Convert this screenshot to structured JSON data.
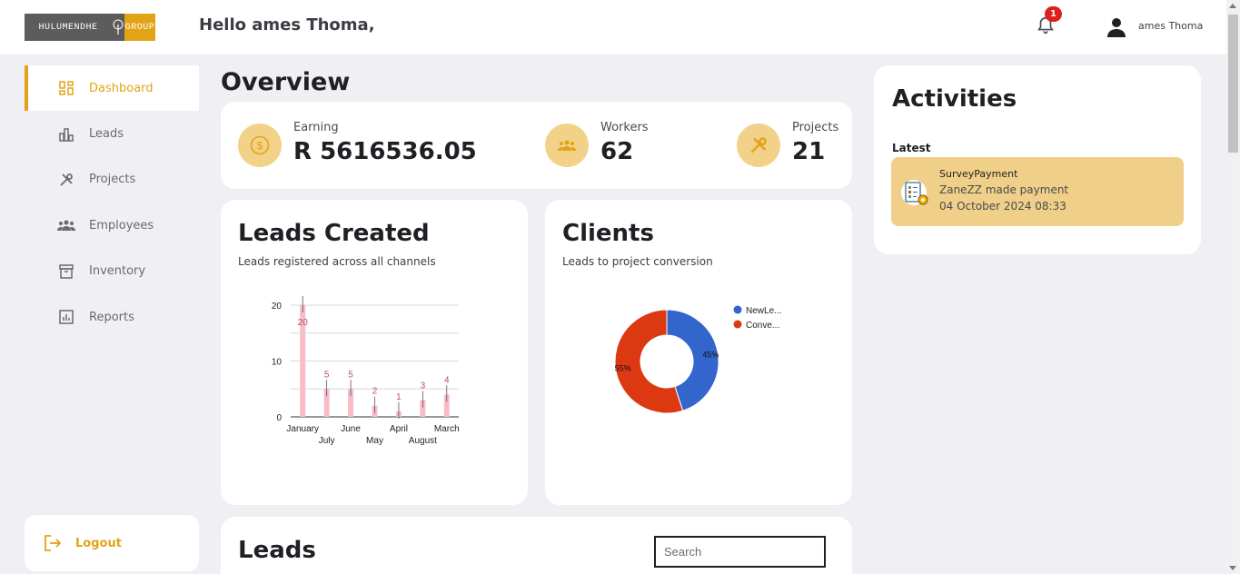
{
  "header": {
    "logo_left": "HULUMENDHE",
    "logo_right": "GROUP",
    "greeting": "Hello ames Thoma,",
    "notification_count": "1",
    "user_name": "ames Thoma"
  },
  "sidebar": {
    "items": [
      {
        "label": "Dashboard",
        "icon": "dashboard-icon",
        "active": true
      },
      {
        "label": "Leads",
        "icon": "bar-chart-icon",
        "active": false
      },
      {
        "label": "Projects",
        "icon": "tools-icon",
        "active": false
      },
      {
        "label": "Employees",
        "icon": "people-icon",
        "active": false
      },
      {
        "label": "Inventory",
        "icon": "archive-icon",
        "active": false
      },
      {
        "label": "Reports",
        "icon": "report-icon",
        "active": false
      }
    ],
    "logout_label": "Logout"
  },
  "overview": {
    "title": "Overview",
    "stats": [
      {
        "label": "Earning",
        "value": "R 5616536.05",
        "icon": "coin-icon"
      },
      {
        "label": "Workers",
        "value": "62",
        "icon": "people-icon"
      },
      {
        "label": "Projects",
        "value": "21",
        "icon": "tools-icon"
      }
    ]
  },
  "leads_created": {
    "title": "Leads Created",
    "subtitle": "Leads registered across all channels"
  },
  "clients": {
    "title": "Clients",
    "subtitle": "Leads to project conversion"
  },
  "activities": {
    "title": "Activities",
    "latest_label": "Latest",
    "items": [
      {
        "type": "SurveyPayment",
        "message": "ZaneZZ made payment",
        "time": "04 October 2024 08:33"
      }
    ]
  },
  "leads_table": {
    "title": "Leads",
    "search_placeholder": "Search"
  },
  "colors": {
    "accent": "#e2a416",
    "bar": "#f8bbc8",
    "bar_label": "#b5506a",
    "donut_blue": "#3366cc",
    "donut_red": "#dc3912"
  },
  "chart_data": [
    {
      "type": "bar",
      "categories": [
        "January",
        "July",
        "June",
        "May",
        "April",
        "August",
        "March"
      ],
      "values": [
        20,
        5,
        5,
        2,
        1,
        3,
        4
      ],
      "ylim": [
        0,
        20
      ],
      "yticks": [
        0,
        10,
        20
      ],
      "grid": true,
      "data_labels": true
    },
    {
      "type": "pie",
      "donut": true,
      "labels": [
        "NewLe...",
        "Conve..."
      ],
      "values": [
        45,
        55
      ],
      "slice_labels": [
        "45%",
        "55%"
      ],
      "legend": "right"
    }
  ]
}
